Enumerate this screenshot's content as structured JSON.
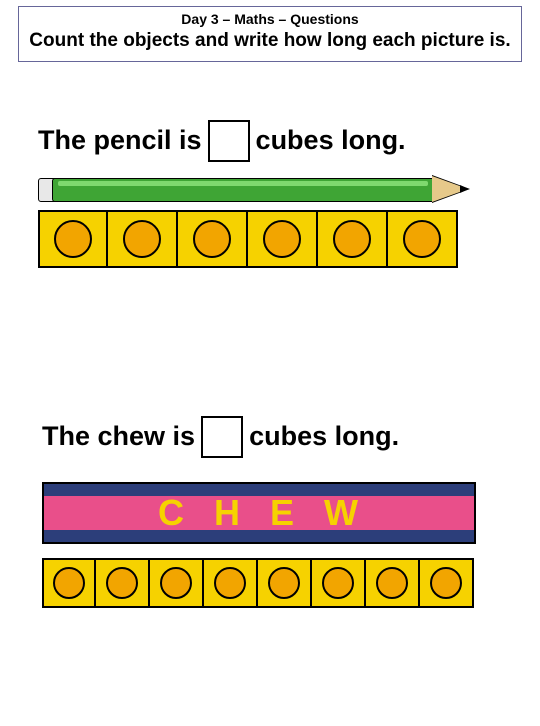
{
  "header": {
    "title": "Day 3 – Maths – Questions",
    "sub": "Count the objects and write how long each picture is."
  },
  "q1": {
    "pre": "The pencil is",
    "post": "cubes long.",
    "pencil": {
      "body_color": "#3fa535",
      "highlight_color": "#7fd96f",
      "tip_color": "#e6c98a",
      "ferrule_color": "#e8e8e8"
    },
    "cubes": {
      "count": 6,
      "cube_width": 70,
      "cube_height": 58,
      "circle_diameter": 34,
      "fill": "#f6d200",
      "circle_fill": "#f2a500",
      "border": "#000000"
    }
  },
  "q2": {
    "pre": "The chew is",
    "post": "cubes long.",
    "chew": {
      "letters": [
        "C",
        "H",
        "E",
        "W"
      ],
      "bar_color": "#2c3e7a",
      "stripe_color": "#e94f8a",
      "letter_color": "#f6d200"
    },
    "cubes": {
      "count": 8,
      "cube_width": 54,
      "cube_height": 50,
      "circle_diameter": 28,
      "fill": "#f6d200",
      "circle_fill": "#f2a500",
      "border": "#000000"
    }
  }
}
